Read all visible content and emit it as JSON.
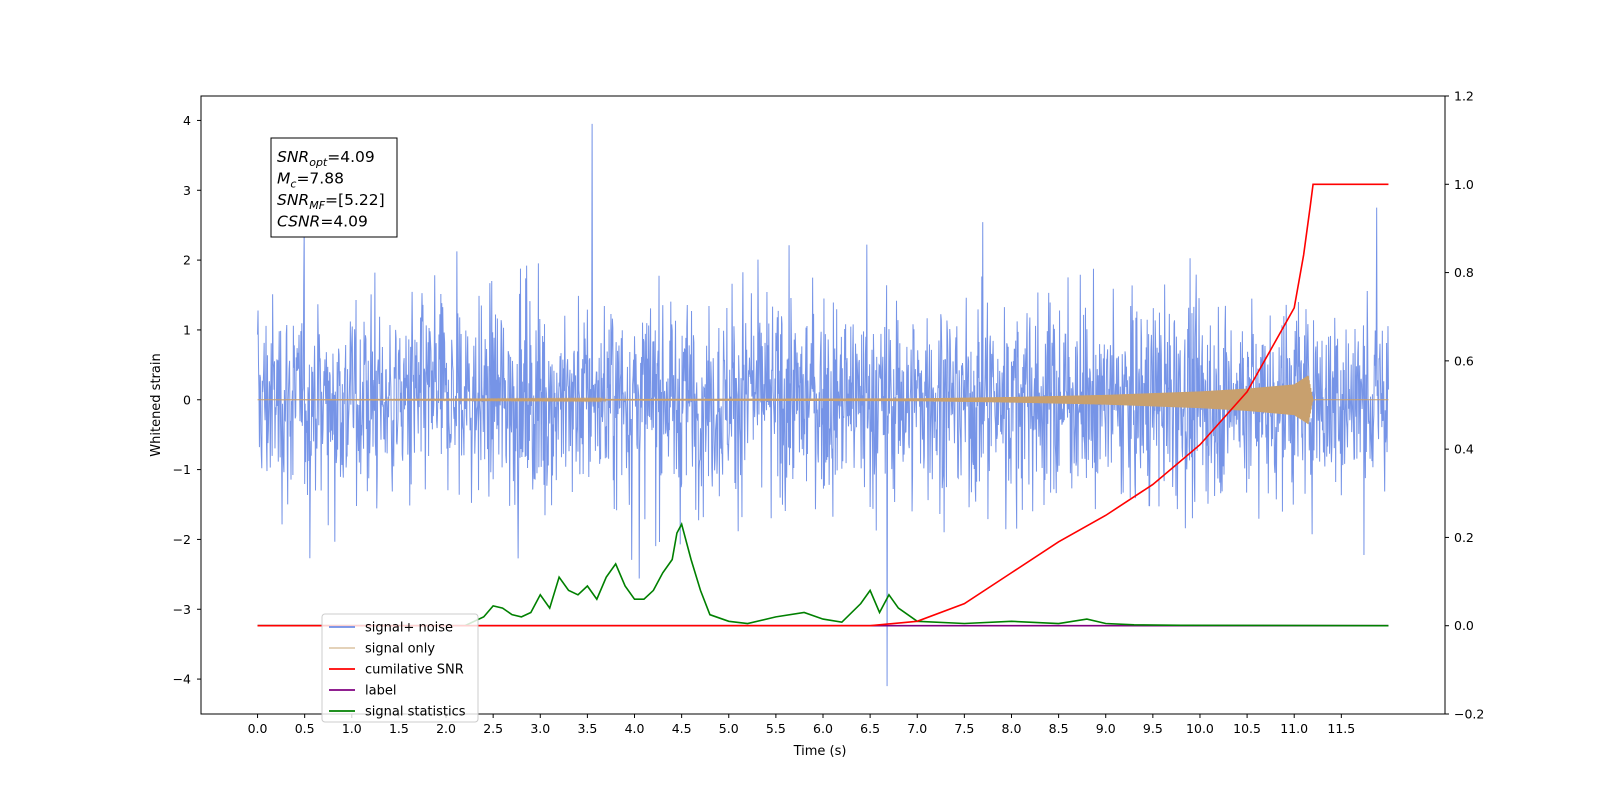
{
  "chart_data": {
    "type": "line",
    "xlabel": "Time (s)",
    "ylabel": "Whitened strain",
    "y2label": "",
    "xlim": [
      -0.6,
      12.6
    ],
    "ylim": [
      -4.5,
      4.35
    ],
    "y2lim": [
      -0.2,
      1.2
    ],
    "xticks": [
      0.0,
      0.5,
      1.0,
      1.5,
      2.0,
      2.5,
      3.0,
      3.5,
      4.0,
      4.5,
      5.0,
      5.5,
      6.0,
      6.5,
      7.0,
      7.5,
      8.0,
      8.5,
      9.0,
      9.5,
      10.0,
      10.5,
      11.0,
      11.5
    ],
    "xtick_labels": [
      "0.0",
      "0.5",
      "1.0",
      "1.5",
      "2.0",
      "2.5",
      "3.0",
      "3.5",
      "4.0",
      "4.5",
      "5.0",
      "5.5",
      "6.0",
      "6.5",
      "7.0",
      "7.5",
      "8.0",
      "8.5",
      "9.0",
      "9.5",
      "10.0",
      "10.5",
      "11.0",
      "11.5"
    ],
    "yticks": [
      -4,
      -3,
      -2,
      -1,
      0,
      1,
      2,
      3,
      4
    ],
    "ytick_labels": [
      "−4",
      "−3",
      "−2",
      "−1",
      "0",
      "1",
      "2",
      "3",
      "4"
    ],
    "y2ticks": [
      -0.2,
      0.0,
      0.2,
      0.4,
      0.6,
      0.8,
      1.0,
      1.2
    ],
    "y2tick_labels": [
      "−0.2",
      "0.0",
      "0.2",
      "0.4",
      "0.6",
      "0.8",
      "1.0",
      "1.2"
    ],
    "grid": false,
    "legend_position": "lower-left",
    "annotation": [
      {
        "base": "SNR",
        "sub": "opt",
        "value": "=4.09"
      },
      {
        "base": "M",
        "sub": "c",
        "value": "=7.88"
      },
      {
        "base": "SNR",
        "sub": "MF",
        "value": "=[5.22]"
      },
      {
        "base": "CSNR",
        "sub": "",
        "value": "=4.09"
      }
    ],
    "series": [
      {
        "name": "signal+ noise",
        "axis": "left",
        "color": "#6f8ee6",
        "x_range": [
          0.0,
          12.0
        ],
        "envelope": {
          "typical_abs": 1.6,
          "peak_max": 3.95,
          "peak_max_x": 3.55,
          "peak_min": -4.1,
          "peak_min_x": 6.68
        }
      },
      {
        "name": "signal only",
        "axis": "left",
        "color": "#c8a06e",
        "x_range": [
          0.0,
          12.0
        ],
        "envelope": {
          "x": [
            0.0,
            7.0,
            8.0,
            9.0,
            10.0,
            10.5,
            11.0,
            11.15,
            11.2
          ],
          "amp": [
            0.0,
            0.02,
            0.04,
            0.07,
            0.12,
            0.16,
            0.22,
            0.35,
            0.0
          ]
        }
      },
      {
        "name": "cumilative SNR",
        "axis": "right",
        "color": "#ff0000",
        "x": [
          0.0,
          6.5,
          7.0,
          7.5,
          8.0,
          8.5,
          9.0,
          9.5,
          10.0,
          10.5,
          11.0,
          11.1,
          11.17,
          11.2,
          12.0
        ],
        "y": [
          0.0,
          0.0,
          0.01,
          0.05,
          0.12,
          0.19,
          0.25,
          0.32,
          0.41,
          0.53,
          0.72,
          0.84,
          0.95,
          1.0,
          1.0
        ]
      },
      {
        "name": "label",
        "axis": "right",
        "color": "#800080",
        "x": [
          0.0,
          12.0
        ],
        "y": [
          0.0,
          0.0
        ]
      },
      {
        "name": "signal statistics",
        "axis": "right",
        "color": "#008000",
        "x": [
          0.0,
          2.2,
          2.4,
          2.5,
          2.6,
          2.7,
          2.8,
          2.9,
          3.0,
          3.1,
          3.2,
          3.3,
          3.4,
          3.5,
          3.6,
          3.7,
          3.8,
          3.9,
          4.0,
          4.1,
          4.2,
          4.3,
          4.4,
          4.45,
          4.5,
          4.6,
          4.7,
          4.8,
          5.0,
          5.2,
          5.5,
          5.8,
          6.0,
          6.2,
          6.4,
          6.5,
          6.6,
          6.7,
          6.8,
          7.0,
          7.5,
          8.0,
          8.5,
          8.8,
          9.0,
          9.3,
          9.8,
          12.0
        ],
        "y": [
          0.0,
          0.0,
          0.02,
          0.045,
          0.04,
          0.025,
          0.02,
          0.03,
          0.07,
          0.04,
          0.11,
          0.08,
          0.07,
          0.09,
          0.06,
          0.11,
          0.14,
          0.09,
          0.06,
          0.06,
          0.08,
          0.12,
          0.15,
          0.21,
          0.23,
          0.15,
          0.08,
          0.025,
          0.01,
          0.005,
          0.02,
          0.03,
          0.015,
          0.008,
          0.05,
          0.08,
          0.03,
          0.07,
          0.04,
          0.01,
          0.005,
          0.01,
          0.005,
          0.015,
          0.005,
          0.002,
          0.001,
          0.0
        ]
      }
    ]
  }
}
